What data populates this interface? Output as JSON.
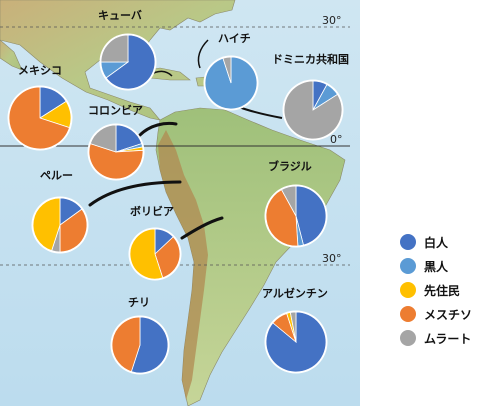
{
  "colors": {
    "white": "#4472C4",
    "black": "#5B9BD5",
    "indigenous": "#FFC000",
    "mestizo": "#ED7D31",
    "mulatto": "#A5A5A5"
  },
  "latitude_labels": [
    "30°",
    "0°",
    "30°"
  ],
  "legend": [
    {
      "key": "white",
      "label": "白人"
    },
    {
      "key": "black",
      "label": "黒人"
    },
    {
      "key": "indigenous",
      "label": "先住民"
    },
    {
      "key": "mestizo",
      "label": "メスチソ"
    },
    {
      "key": "mulatto",
      "label": "ムラート"
    }
  ],
  "countries": [
    {
      "id": "cuba",
      "name": "キューバ",
      "shares": [
        {
          "k": "white",
          "v": 0.65
        },
        {
          "k": "black",
          "v": 0.1
        },
        {
          "k": "mulatto",
          "v": 0.25
        }
      ]
    },
    {
      "id": "haiti",
      "name": "ハイチ",
      "shares": [
        {
          "k": "black",
          "v": 0.95
        },
        {
          "k": "mulatto",
          "v": 0.05
        }
      ]
    },
    {
      "id": "dominican",
      "name": "ドミニカ共和国",
      "shares": [
        {
          "k": "white",
          "v": 0.08
        },
        {
          "k": "black",
          "v": 0.08
        },
        {
          "k": "mulatto",
          "v": 0.84
        }
      ]
    },
    {
      "id": "mexico",
      "name": "メキシコ",
      "shares": [
        {
          "k": "white",
          "v": 0.16
        },
        {
          "k": "indigenous",
          "v": 0.14
        },
        {
          "k": "mestizo",
          "v": 0.7
        }
      ]
    },
    {
      "id": "colombia",
      "name": "コロンビア",
      "shares": [
        {
          "k": "white",
          "v": 0.2
        },
        {
          "k": "black",
          "v": 0.02
        },
        {
          "k": "indigenous",
          "v": 0.02
        },
        {
          "k": "mestizo",
          "v": 0.56
        },
        {
          "k": "mulatto",
          "v": 0.2
        }
      ]
    },
    {
      "id": "peru",
      "name": "ペルー",
      "shares": [
        {
          "k": "white",
          "v": 0.15
        },
        {
          "k": "mestizo",
          "v": 0.35
        },
        {
          "k": "mulatto",
          "v": 0.05
        },
        {
          "k": "indigenous",
          "v": 0.45
        }
      ]
    },
    {
      "id": "bolivia",
      "name": "ボリビア",
      "shares": [
        {
          "k": "white",
          "v": 0.13
        },
        {
          "k": "mestizo",
          "v": 0.32
        },
        {
          "k": "indigenous",
          "v": 0.55
        }
      ]
    },
    {
      "id": "brazil",
      "name": "ブラジル",
      "shares": [
        {
          "k": "white",
          "v": 0.46
        },
        {
          "k": "black",
          "v": 0.03
        },
        {
          "k": "mestizo",
          "v": 0.43
        },
        {
          "k": "mulatto",
          "v": 0.08
        }
      ]
    },
    {
      "id": "chile",
      "name": "チリ",
      "shares": [
        {
          "k": "white",
          "v": 0.55
        },
        {
          "k": "mestizo",
          "v": 0.45
        }
      ]
    },
    {
      "id": "argentina",
      "name": "アルゼンチン",
      "shares": [
        {
          "k": "white",
          "v": 0.86
        },
        {
          "k": "mestizo",
          "v": 0.09
        },
        {
          "k": "indigenous",
          "v": 0.02
        },
        {
          "k": "mulatto",
          "v": 0.03
        }
      ]
    }
  ]
}
